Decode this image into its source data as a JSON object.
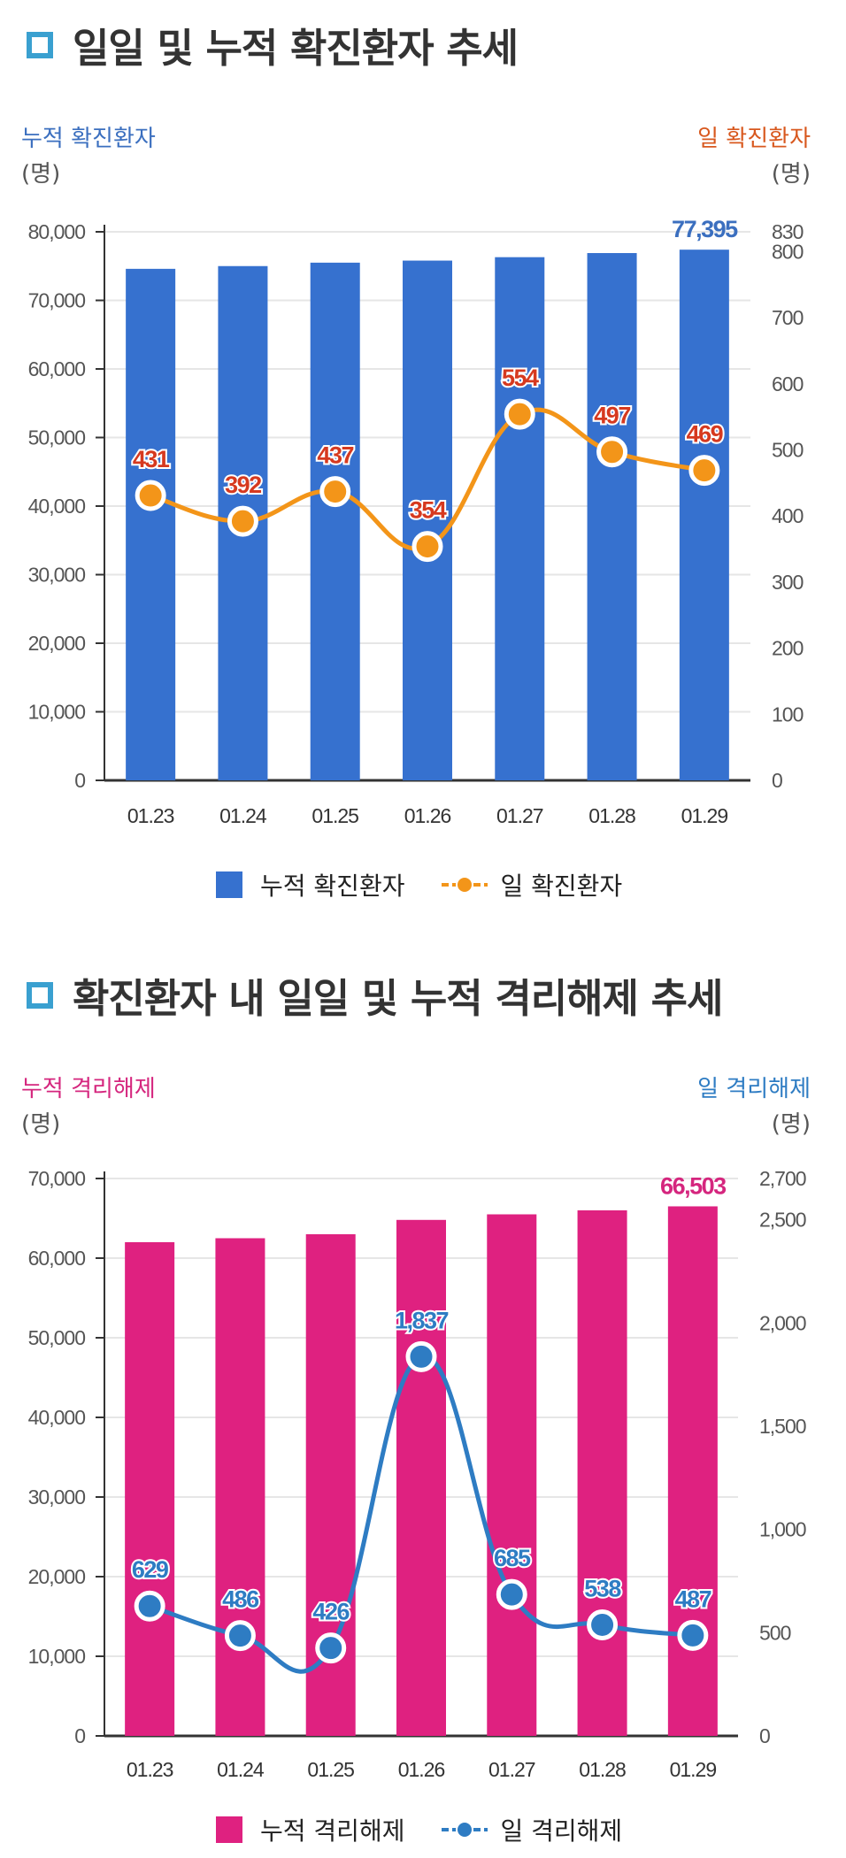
{
  "charts": [
    {
      "title": "일일 및 누적 확진환자 추세",
      "left_axis_label": "누적 확진환자",
      "left_unit": "(명)",
      "right_axis_label": "일 확진환자",
      "right_unit": "(명)",
      "legend": [
        "누적 확진환자",
        "일 확진환자"
      ],
      "bar_color": "#3671cf",
      "line_color": "#f39519",
      "label_color": "#d6391f",
      "left_label_color": "#3b6fbf",
      "right_label_color": "#d8581e",
      "total_label_color": "#3b6fbf"
    },
    {
      "title": "확진환자 내 일일 및 누적 격리해제 추세",
      "left_axis_label": "누적 격리해제",
      "left_unit": "(명)",
      "right_axis_label": "일 격리해제",
      "right_unit": "(명)",
      "legend": [
        "누적 격리해제",
        "일 격리해제"
      ],
      "bar_color": "#df2180",
      "line_color": "#2e7cc3",
      "label_color": "#2e7cc3",
      "left_label_color": "#d5267e",
      "right_label_color": "#2e7cc3",
      "total_label_color": "#d5267e"
    }
  ],
  "chart_data": [
    {
      "type": "bar",
      "categories": [
        "01.23",
        "01.24",
        "01.25",
        "01.26",
        "01.27",
        "01.28",
        "01.29"
      ],
      "series": [
        {
          "name": "누적 확진환자",
          "type": "bar",
          "axis": "left",
          "values": [
            74600,
            75000,
            75500,
            75800,
            76300,
            76900,
            77395
          ]
        },
        {
          "name": "일 확진환자",
          "type": "line",
          "axis": "right",
          "values": [
            431,
            392,
            437,
            354,
            554,
            497,
            469
          ]
        }
      ],
      "bar_value_label": "77,395",
      "line_value_labels": [
        "431",
        "392",
        "437",
        "354",
        "554",
        "497",
        "469"
      ],
      "ylim_left": [
        0,
        80000
      ],
      "yticks_left": [
        "0",
        "10,000",
        "20,000",
        "30,000",
        "40,000",
        "50,000",
        "60,000",
        "70,000",
        "80,000"
      ],
      "ylim_right": [
        0,
        830
      ],
      "yticks_right": [
        "0",
        "100",
        "200",
        "300",
        "400",
        "500",
        "600",
        "700",
        "800",
        "830"
      ],
      "grid": true,
      "legend_position": "bottom"
    },
    {
      "type": "bar",
      "categories": [
        "01.23",
        "01.24",
        "01.25",
        "01.26",
        "01.27",
        "01.28",
        "01.29"
      ],
      "series": [
        {
          "name": "누적 격리해제",
          "type": "bar",
          "axis": "left",
          "values": [
            62000,
            62500,
            63000,
            64800,
            65500,
            66000,
            66503
          ]
        },
        {
          "name": "일 격리해제",
          "type": "line",
          "axis": "right",
          "values": [
            629,
            486,
            426,
            1837,
            685,
            538,
            487
          ]
        }
      ],
      "bar_value_label": "66,503",
      "line_value_labels": [
        "629",
        "486",
        "426",
        "1,837",
        "685",
        "538",
        "487"
      ],
      "ylim_left": [
        0,
        70000
      ],
      "yticks_left": [
        "0",
        "10,000",
        "20,000",
        "30,000",
        "40,000",
        "50,000",
        "60,000",
        "70,000"
      ],
      "ylim_right": [
        0,
        2700
      ],
      "yticks_right": [
        "0",
        "500",
        "1,000",
        "1,500",
        "2,000",
        "2,500",
        "2,700"
      ],
      "grid": true,
      "legend_position": "bottom"
    }
  ]
}
